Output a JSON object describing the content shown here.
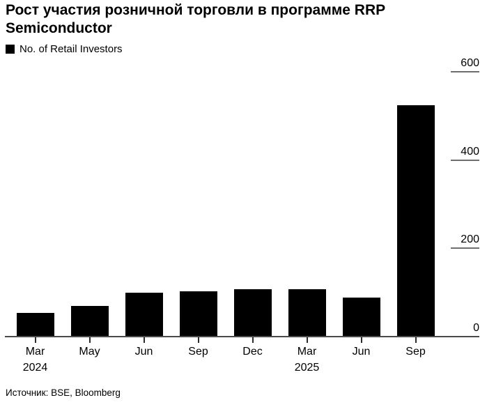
{
  "header": {
    "title_full": "Рост участия розничной торговли в программе RRP Semiconductor",
    "title_line1": "Рост участия розничной торговли в программе RRP",
    "title_line2": "Semiconductor"
  },
  "legend": {
    "label": "No. of Retail Investors",
    "swatch_color": "#000000"
  },
  "source": "Источник: BSE, Bloomberg",
  "colors": {
    "bar": "#000000",
    "axis_line": "#4a4a4a",
    "x_tick": "#2b2b2b",
    "y_tick": "#6e6e6e",
    "text": "#000000",
    "background": "#ffffff"
  },
  "chart_data": {
    "type": "bar",
    "title": "Рост участия розничной торговли в программе RRP Semiconductor",
    "series_name": "No. of Retail Investors",
    "categories": [
      {
        "label": "Mar",
        "sub": "2024"
      },
      {
        "label": "May"
      },
      {
        "label": "Jun"
      },
      {
        "label": "Sep"
      },
      {
        "label": "Dec"
      },
      {
        "label": "Mar",
        "sub": "2025"
      },
      {
        "label": "Jun"
      },
      {
        "label": "Sep"
      }
    ],
    "values": [
      53,
      69,
      99,
      102,
      107,
      107,
      88,
      524
    ],
    "xlabel": "",
    "ylabel": "",
    "ylim": [
      0,
      600
    ],
    "yticks": [
      0,
      200,
      400,
      600
    ],
    "y_axis_side": "right",
    "grid": false,
    "legend_position": "top-left",
    "bar_color": "#000000"
  }
}
